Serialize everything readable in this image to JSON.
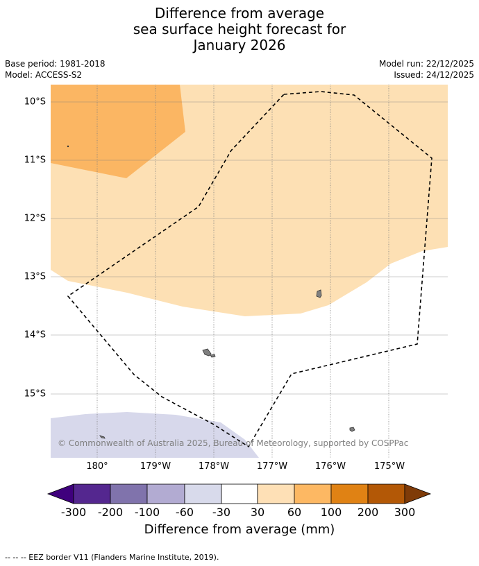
{
  "title": {
    "line1": "Difference from average",
    "line2": "sea surface height forecast for",
    "line3": "January 2026"
  },
  "meta": {
    "base_period": "Base period: 1981-2018",
    "model": "Model: ACCESS-S2",
    "model_run": "Model run: 22/12/2025",
    "issued": "Issued: 24/12/2025"
  },
  "map": {
    "lat_labels": [
      "10°S",
      "11°S",
      "12°S",
      "13°S",
      "14°S",
      "15°S"
    ],
    "lon_labels": [
      "180°",
      "179°W",
      "178°W",
      "177°W",
      "176°W",
      "175°W"
    ],
    "copyright": "© Commonwealth of Australia 2025, Bureau of Meteorology, supported by COSPPac",
    "colors": {
      "ocean": "#ffffff",
      "anomaly_30_60": "#fde0b4",
      "anomaly_60_100": "#fbb663",
      "anomaly_neg60_neg30": "#d7d8eb",
      "land": "#808080",
      "eez_border": "#000000",
      "gridline": "#808080"
    }
  },
  "legend": {
    "ticks": [
      "-300",
      "-200",
      "-100",
      "-60",
      "-30",
      "30",
      "60",
      "100",
      "200",
      "300"
    ],
    "colors": [
      "#3f007d",
      "#54278f",
      "#8073ac",
      "#b2abd2",
      "#d8daeb",
      "#ffffff",
      "#fee0b6",
      "#fdb863",
      "#e08214",
      "#b35806",
      "#7f3b08"
    ],
    "label": "Difference from average (mm)"
  },
  "footnote": "--  --  -- EEZ border V11 (Flanders Marine Institute, 2019)."
}
